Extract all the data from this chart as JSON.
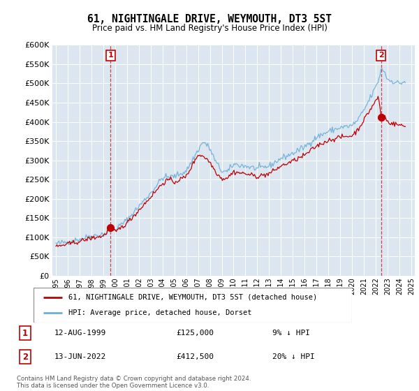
{
  "title": "61, NIGHTINGALE DRIVE, WEYMOUTH, DT3 5ST",
  "subtitle": "Price paid vs. HM Land Registry's House Price Index (HPI)",
  "legend_line1": "61, NIGHTINGALE DRIVE, WEYMOUTH, DT3 5ST (detached house)",
  "legend_line2": "HPI: Average price, detached house, Dorset",
  "sale1_date": "12-AUG-1999",
  "sale1_price": "£125,000",
  "sale1_hpi": "9% ↓ HPI",
  "sale2_date": "13-JUN-2022",
  "sale2_price": "£412,500",
  "sale2_hpi": "20% ↓ HPI",
  "footer": "Contains HM Land Registry data © Crown copyright and database right 2024.\nThis data is licensed under the Open Government Licence v3.0.",
  "hpi_color": "#6baed6",
  "price_color": "#c00000",
  "marker_box_color": "#c00000",
  "plot_bg_color": "#dce6f1",
  "ylim": [
    0,
    600000
  ],
  "yticks": [
    0,
    50000,
    100000,
    150000,
    200000,
    250000,
    300000,
    350000,
    400000,
    450000,
    500000,
    550000,
    600000
  ],
  "sale1_year": 1999.62,
  "sale1_value": 125000,
  "sale2_year": 2022.45,
  "sale2_value": 412500,
  "xmin": 1994.7,
  "xmax": 2025.3
}
